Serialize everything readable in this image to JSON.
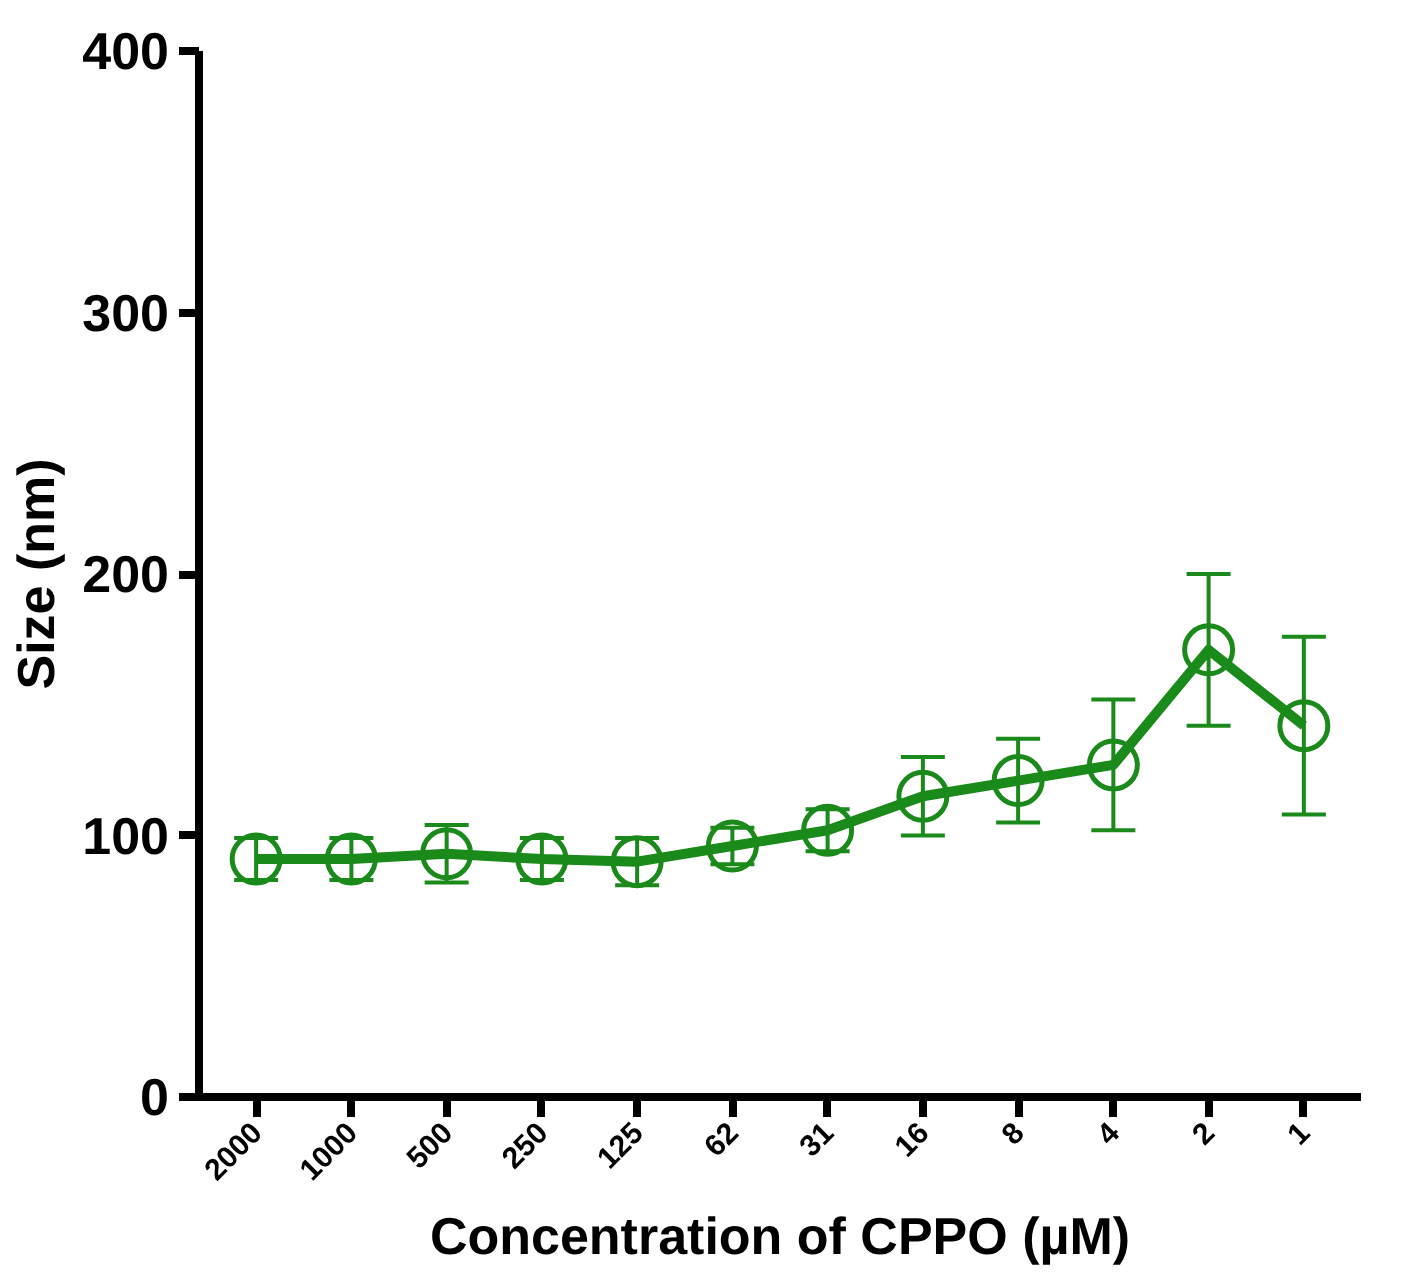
{
  "chart_data": {
    "type": "line",
    "xlabel": "Concentration of CPPO (µM)",
    "ylabel": "Size (nm)",
    "categories": [
      "2000",
      "1000",
      "500",
      "250",
      "125",
      "62",
      "31",
      "16",
      "8",
      "4",
      "2",
      "1"
    ],
    "series": [
      {
        "color": "#1a8a1a",
        "values": [
          91,
          91,
          93,
          91,
          90,
          96,
          102,
          115,
          121,
          127,
          171,
          142
        ],
        "errors": [
          8,
          8,
          11,
          8,
          9,
          7,
          8,
          15,
          16,
          25,
          29,
          34
        ]
      }
    ],
    "ylim": [
      0,
      400
    ],
    "yticks": [
      0,
      100,
      200,
      300,
      400
    ],
    "grid": false,
    "marker": "circle",
    "line_style": "solid"
  }
}
